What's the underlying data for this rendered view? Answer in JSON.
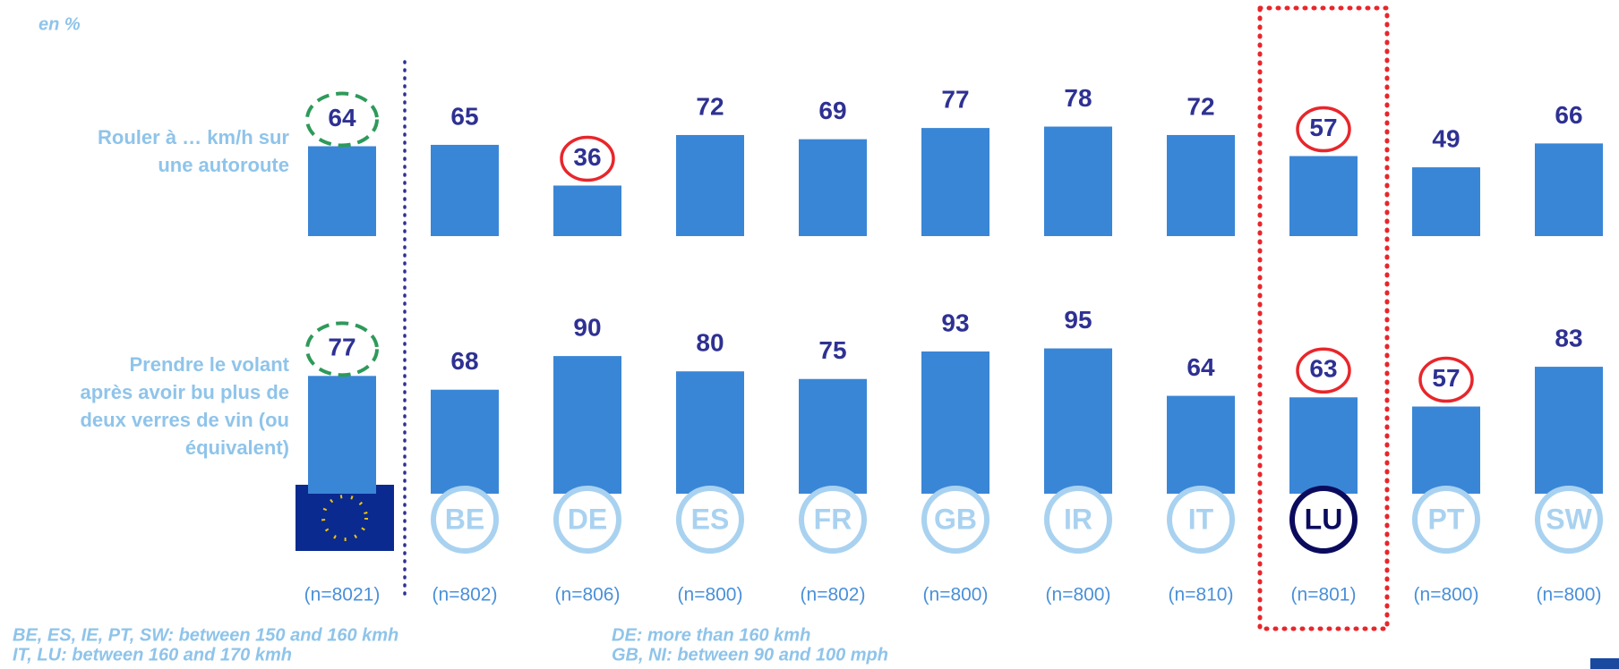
{
  "chart_data": {
    "type": "bar",
    "subtitle": "en %",
    "categories": [
      null,
      "BE",
      "DE",
      "ES",
      "FR",
      "GB",
      "IR",
      "IT",
      "LU",
      "PT",
      "SW"
    ],
    "sample_sizes": [
      "(n=8021)",
      "(n=802)",
      "(n=806)",
      "(n=800)",
      "(n=802)",
      "(n=800)",
      "(n=800)",
      "(n=810)",
      "(n=801)",
      "(n=800)",
      "(n=800)"
    ],
    "ylim": [
      0,
      100
    ],
    "color": "#3a86d6",
    "series": [
      {
        "name": [
          "Rouler à … km/h sur",
          "une autoroute"
        ],
        "values": [
          64,
          65,
          36,
          72,
          69,
          77,
          78,
          72,
          57,
          49,
          66
        ],
        "circled": [
          2,
          8
        ]
      },
      {
        "name": [
          "Prendre le volant",
          "après avoir bu plus de",
          "deux verres de vin (ou",
          "équivalent)"
        ],
        "values": [
          77,
          68,
          90,
          80,
          75,
          93,
          95,
          64,
          63,
          57,
          83
        ],
        "circled": [
          8,
          9
        ]
      }
    ],
    "highlighted_category": 8,
    "notes": [
      "BE, ES, IE, PT, SW: between 150 and 160 kmh",
      "IT, LU: between 160 and 170 kmh",
      "DE: more than 160 kmh",
      "GB, NI: between 90 and 100 mph"
    ]
  }
}
